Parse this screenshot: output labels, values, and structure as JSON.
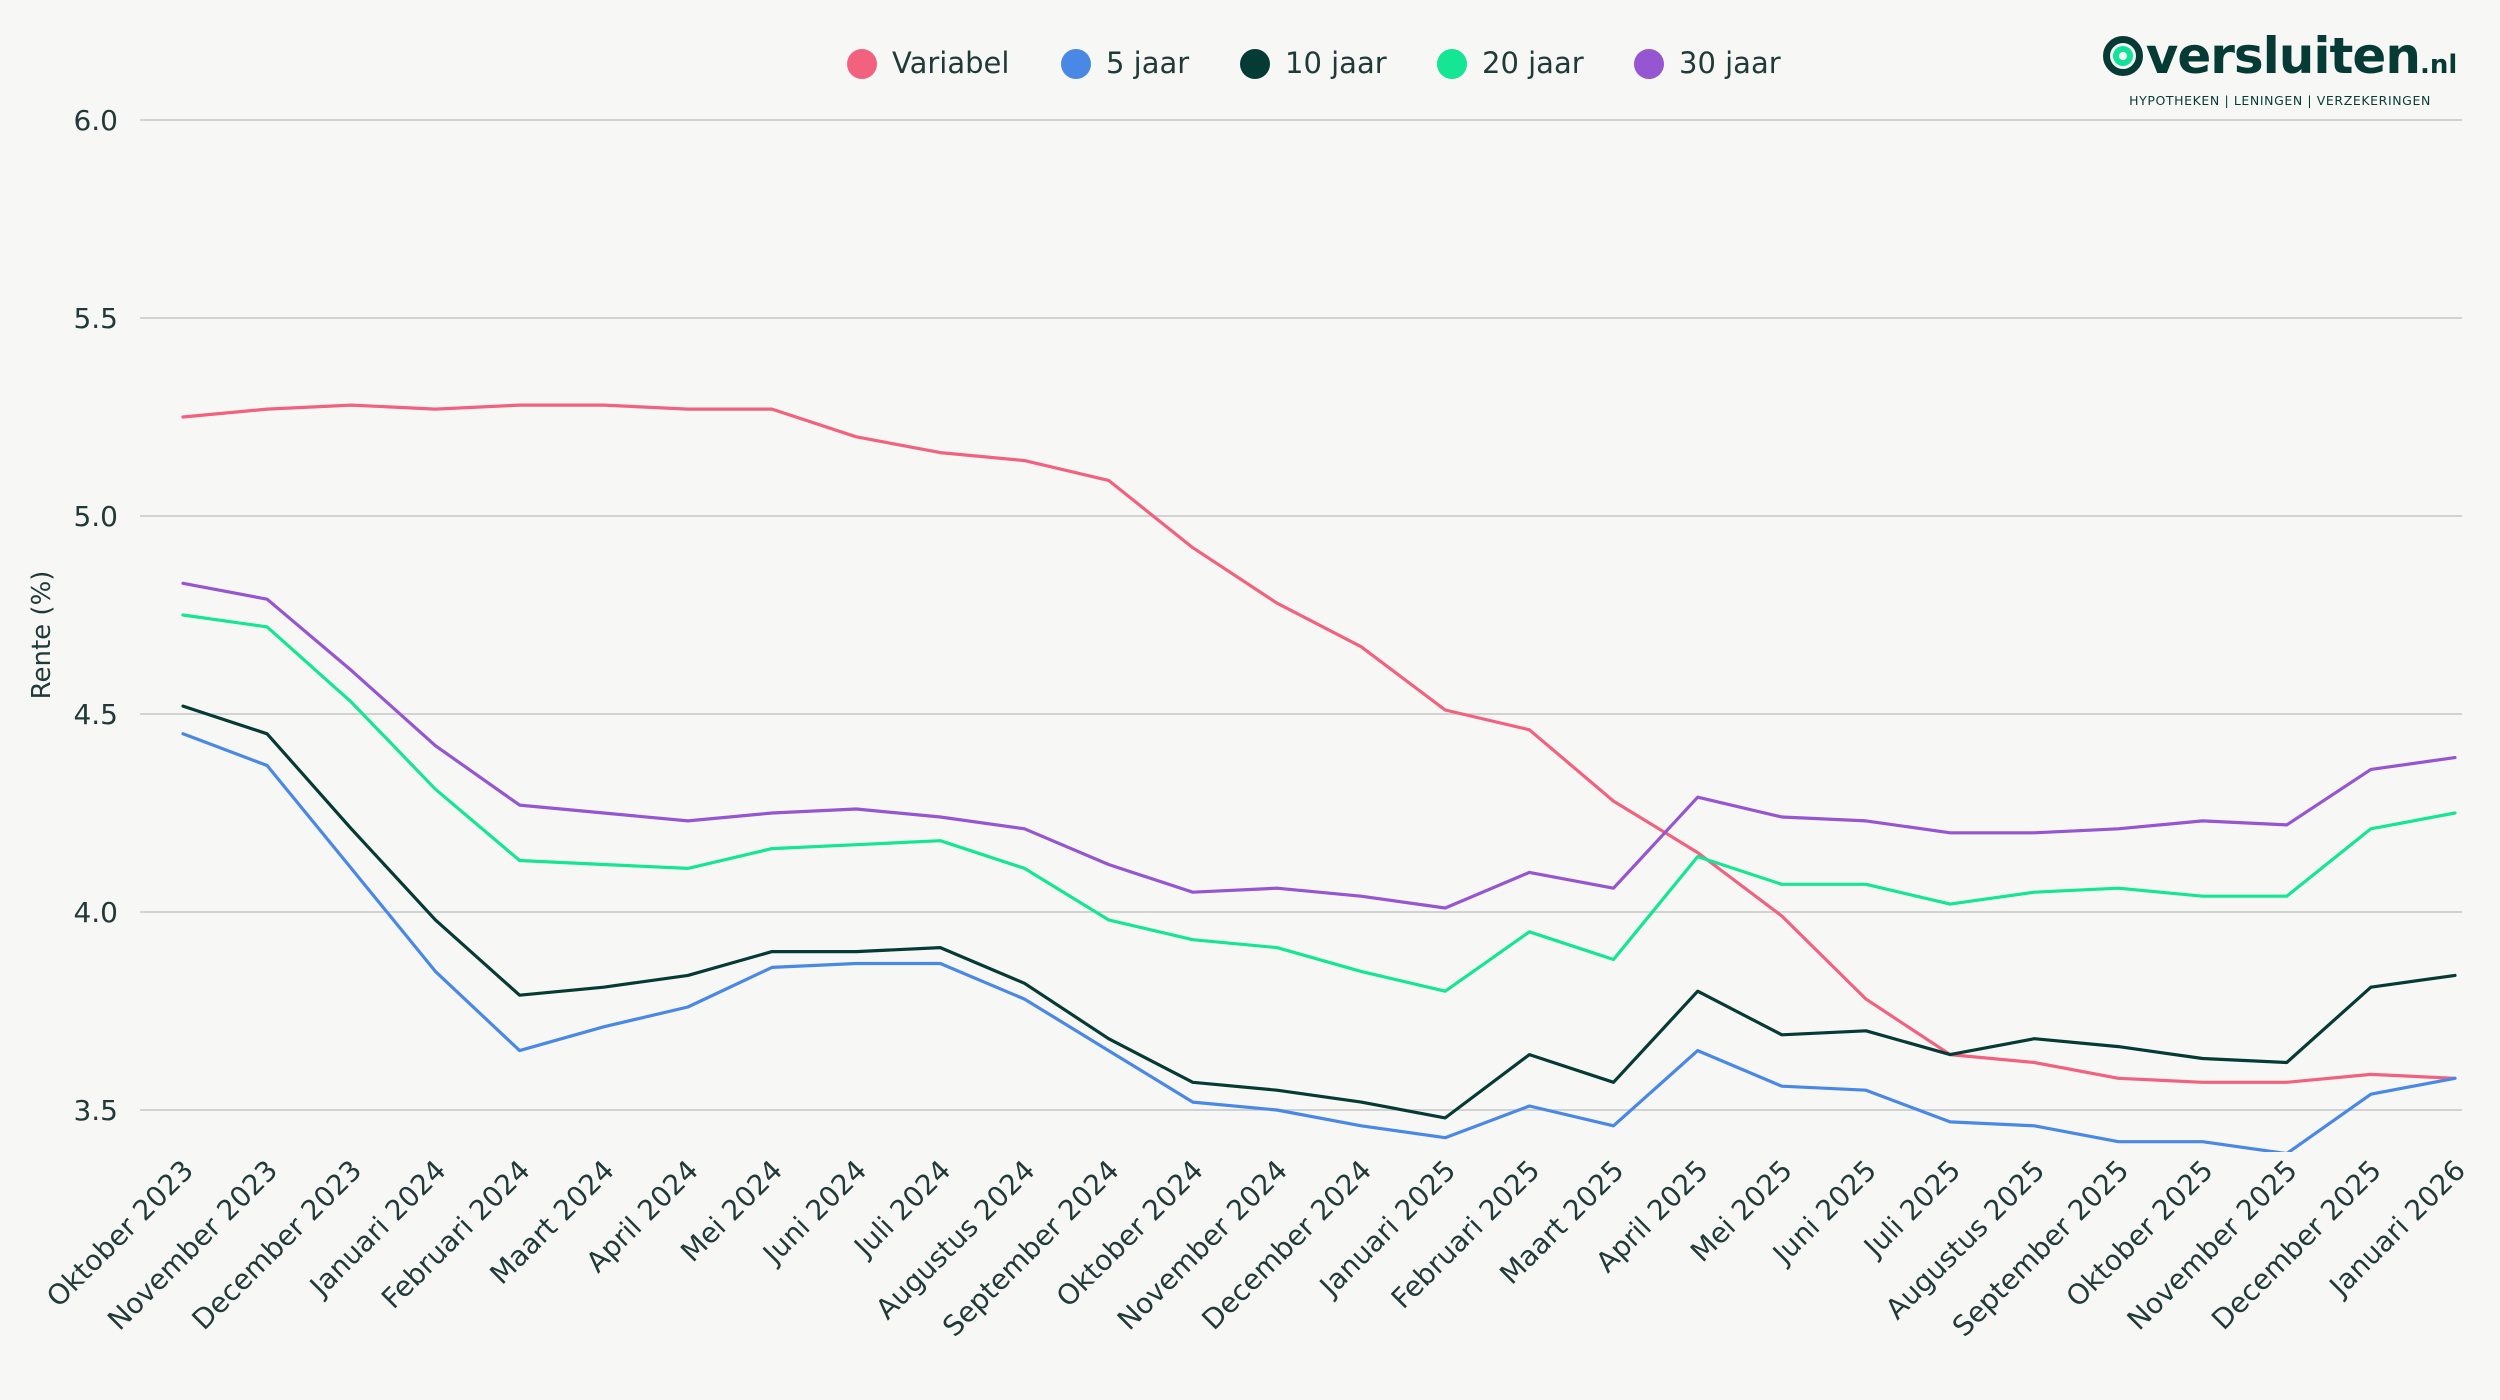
{
  "brand": {
    "name": "versluiten",
    "tld": ".nl",
    "tagline": "HYPOTHEKEN | LENINGEN | VERZEKERINGEN"
  },
  "chart_data": {
    "type": "line",
    "title": "",
    "xlabel": "",
    "ylabel": "Rente (%)",
    "ylim": [
      3.35,
      6.0
    ],
    "yticks": [
      "3.5",
      "4.0",
      "4.5",
      "5.0",
      "5.5",
      "6.0"
    ],
    "grid": true,
    "legend_position": "top-center",
    "categories": [
      "Oktober 2023",
      "November 2023",
      "December 2023",
      "Januari 2024",
      "Februari 2024",
      "Maart 2024",
      "April 2024",
      "Mei 2024",
      "Juni 2024",
      "Juli 2024",
      "Augustus 2024",
      "September 2024",
      "Oktober 2024",
      "November 2024",
      "December 2024",
      "Januari 2025",
      "Februari 2025",
      "Maart 2025",
      "April 2025",
      "Mei 2025",
      "Juni 2025",
      "Juli 2025",
      "Augustus 2025",
      "September 2025",
      "Oktober 2025",
      "November 2025",
      "December 2025",
      "Januari 2026"
    ],
    "series": [
      {
        "name": "Variabel",
        "color": "#f2627f",
        "values": [
          5.25,
          5.27,
          5.28,
          5.27,
          5.28,
          5.28,
          5.27,
          5.27,
          5.2,
          5.16,
          5.14,
          5.09,
          4.92,
          4.78,
          4.67,
          4.51,
          4.46,
          4.28,
          4.15,
          3.99,
          3.78,
          3.64,
          3.62,
          3.58,
          3.57,
          3.57,
          3.59,
          3.58
        ]
      },
      {
        "name": "5 jaar",
        "color": "#4a88e6",
        "values": [
          4.45,
          4.37,
          4.11,
          3.85,
          3.65,
          3.71,
          3.76,
          3.86,
          3.87,
          3.87,
          3.78,
          3.65,
          3.52,
          3.5,
          3.46,
          3.43,
          3.51,
          3.46,
          3.65,
          3.56,
          3.55,
          3.47,
          3.46,
          3.42,
          3.42,
          3.39,
          3.54,
          3.58
        ]
      },
      {
        "name": "10 jaar",
        "color": "#063b35",
        "values": [
          4.52,
          4.45,
          4.21,
          3.98,
          3.79,
          3.81,
          3.84,
          3.9,
          3.9,
          3.91,
          3.82,
          3.68,
          3.57,
          3.55,
          3.52,
          3.48,
          3.64,
          3.57,
          3.8,
          3.69,
          3.7,
          3.64,
          3.68,
          3.66,
          3.63,
          3.62,
          3.81,
          3.84
        ]
      },
      {
        "name": "20 jaar",
        "color": "#14e693",
        "values": [
          4.75,
          4.72,
          4.53,
          4.31,
          4.13,
          4.12,
          4.11,
          4.16,
          4.17,
          4.18,
          4.11,
          3.98,
          3.93,
          3.91,
          3.85,
          3.8,
          3.95,
          3.88,
          4.14,
          4.07,
          4.07,
          4.02,
          4.05,
          4.06,
          4.04,
          4.04,
          4.21,
          4.25
        ]
      },
      {
        "name": "30 jaar",
        "color": "#9655d1",
        "values": [
          4.83,
          4.79,
          4.61,
          4.42,
          4.27,
          4.25,
          4.23,
          4.25,
          4.26,
          4.24,
          4.21,
          4.12,
          4.05,
          4.06,
          4.04,
          4.01,
          4.1,
          4.06,
          4.29,
          4.24,
          4.23,
          4.2,
          4.2,
          4.21,
          4.23,
          4.22,
          4.36,
          4.39
        ]
      }
    ]
  }
}
